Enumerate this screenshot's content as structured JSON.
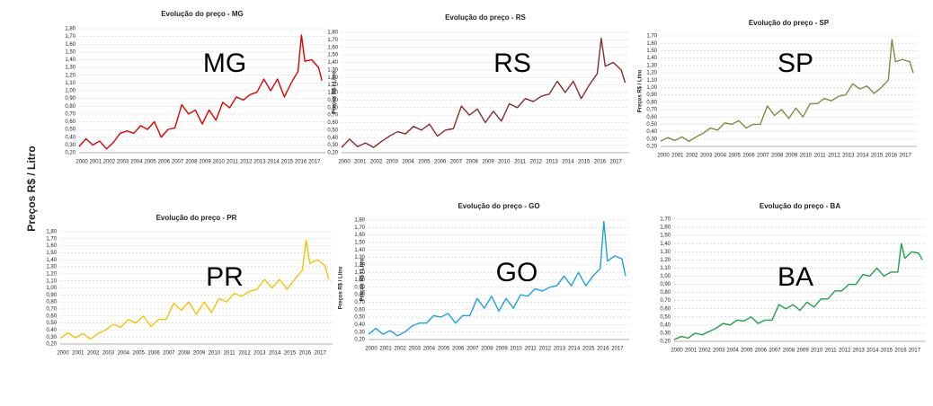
{
  "ylabel": "Preços R$ / Litro",
  "chart_data": [
    {
      "type": "line",
      "title": "Evolução do preço - MG",
      "label": "MG",
      "x": [
        2000,
        2000.5,
        2001,
        2001.5,
        2002,
        2002.5,
        2003,
        2003.5,
        2004,
        2004.5,
        2005,
        2005.5,
        2006,
        2006.5,
        2007,
        2007.5,
        2008,
        2008.5,
        2009,
        2009.5,
        2010,
        2010.5,
        2011,
        2011.5,
        2012,
        2012.5,
        2013,
        2013.5,
        2014,
        2014.5,
        2015,
        2015.5,
        2016,
        2016.25,
        2016.5,
        2017,
        2017.5,
        2017.75
      ],
      "xlim": [
        2000,
        2018
      ],
      "xticks": [
        2000,
        2001,
        2002,
        2003,
        2004,
        2005,
        2006,
        2007,
        2008,
        2009,
        2010,
        2011,
        2012,
        2013,
        2014,
        2015,
        2016,
        2017
      ],
      "ylim": [
        0.2,
        1.8
      ],
      "yticks": [
        {
          "value": 0.2,
          "label": "0,20"
        },
        {
          "value": 0.3,
          "label": "0,30"
        },
        {
          "value": 0.4,
          "label": "0,40"
        },
        {
          "value": 0.5,
          "label": "0,50"
        },
        {
          "value": 0.6,
          "label": "0,60"
        },
        {
          "value": 0.7,
          "label": "0,70"
        },
        {
          "value": 0.8,
          "label": "0,80"
        },
        {
          "value": 0.9,
          "label": "0,90"
        },
        {
          "value": 1.0,
          "label": "1,00"
        },
        {
          "value": 1.1,
          "label": "1,10"
        },
        {
          "value": 1.2,
          "label": "1,20"
        },
        {
          "value": 1.3,
          "label": "1,30"
        },
        {
          "value": 1.4,
          "label": "1,40"
        },
        {
          "value": 1.5,
          "label": "1,50"
        },
        {
          "value": 1.6,
          "label": "1,60"
        },
        {
          "value": 1.7,
          "label": "1,70"
        },
        {
          "value": 1.8,
          "label": "1,80"
        }
      ],
      "grid": true,
      "series": [
        {
          "color": "#e00000",
          "values": [
            0.28,
            0.38,
            0.3,
            0.35,
            0.25,
            0.33,
            0.45,
            0.48,
            0.45,
            0.55,
            0.5,
            0.6,
            0.4,
            0.5,
            0.52,
            0.82,
            0.7,
            0.75,
            0.57,
            0.75,
            0.62,
            0.85,
            0.78,
            0.92,
            0.88,
            0.95,
            0.98,
            1.15,
            1.0,
            1.15,
            0.92,
            1.1,
            1.25,
            1.72,
            1.38,
            1.4,
            1.3,
            1.13
          ]
        }
      ]
    },
    {
      "type": "line",
      "title": "Evolução do preço - RS",
      "label": "RS",
      "ylabel": "Preços R$ / Litro",
      "x": [
        2000,
        2000.5,
        2001,
        2001.5,
        2002,
        2002.5,
        2003,
        2003.5,
        2004,
        2004.5,
        2005,
        2005.5,
        2006,
        2006.5,
        2007,
        2007.5,
        2008,
        2008.5,
        2009,
        2009.5,
        2010,
        2010.5,
        2011,
        2011.5,
        2012,
        2012.5,
        2013,
        2013.5,
        2014,
        2014.5,
        2015,
        2015.5,
        2016,
        2016.25,
        2016.5,
        2017,
        2017.5,
        2017.75
      ],
      "xlim": [
        2000,
        2018
      ],
      "xticks": [
        2000,
        2001,
        2002,
        2003,
        2004,
        2005,
        2006,
        2007,
        2008,
        2009,
        2010,
        2011,
        2012,
        2013,
        2014,
        2015,
        2016,
        2017
      ],
      "ylim": [
        0.2,
        1.8
      ],
      "yticks": [
        {
          "value": 0.2,
          "label": "0,20"
        },
        {
          "value": 0.3,
          "label": "0,30"
        },
        {
          "value": 0.4,
          "label": "0,40"
        },
        {
          "value": 0.5,
          "label": "0,50"
        },
        {
          "value": 0.6,
          "label": "0,60"
        },
        {
          "value": 0.7,
          "label": "0,70"
        },
        {
          "value": 0.8,
          "label": "0,80"
        },
        {
          "value": 0.9,
          "label": "0,90"
        },
        {
          "value": 1.0,
          "label": "1,00"
        },
        {
          "value": 1.1,
          "label": "1,10"
        },
        {
          "value": 1.2,
          "label": "1,20"
        },
        {
          "value": 1.3,
          "label": "1,30"
        },
        {
          "value": 1.4,
          "label": "1,40"
        },
        {
          "value": 1.5,
          "label": "1,50"
        },
        {
          "value": 1.6,
          "label": "1,60"
        },
        {
          "value": 1.7,
          "label": "1,70"
        },
        {
          "value": 1.8,
          "label": "1,80"
        }
      ],
      "grid": true,
      "series": [
        {
          "color": "#8b2a2a",
          "values": [
            0.27,
            0.38,
            0.28,
            0.33,
            0.27,
            0.35,
            0.42,
            0.48,
            0.45,
            0.55,
            0.5,
            0.58,
            0.42,
            0.5,
            0.52,
            0.82,
            0.7,
            0.78,
            0.6,
            0.75,
            0.62,
            0.85,
            0.8,
            0.92,
            0.88,
            0.95,
            0.98,
            1.15,
            1.0,
            1.15,
            0.92,
            1.1,
            1.25,
            1.72,
            1.35,
            1.4,
            1.3,
            1.13
          ]
        }
      ]
    },
    {
      "type": "line",
      "title": "Evolução do preço - SP",
      "label": "SP",
      "ylabel": "Preços R$ / Litro",
      "x": [
        2000,
        2000.5,
        2001,
        2001.5,
        2002,
        2002.5,
        2003,
        2003.5,
        2004,
        2004.5,
        2005,
        2005.5,
        2006,
        2006.5,
        2007,
        2007.5,
        2008,
        2008.5,
        2009,
        2009.5,
        2010,
        2010.5,
        2011,
        2011.5,
        2012,
        2012.5,
        2013,
        2013.5,
        2014,
        2014.5,
        2015,
        2015.5,
        2016,
        2016.25,
        2016.5,
        2017,
        2017.5,
        2017.75
      ],
      "xlim": [
        2000,
        2018
      ],
      "xticks": [
        2000,
        2001,
        2002,
        2003,
        2004,
        2005,
        2006,
        2007,
        2008,
        2009,
        2010,
        2011,
        2012,
        2013,
        2014,
        2015,
        2016,
        2017
      ],
      "ylim": [
        0.2,
        1.7
      ],
      "yticks": [
        {
          "value": 0.2,
          "label": "0,20"
        },
        {
          "value": 0.3,
          "label": "0,30"
        },
        {
          "value": 0.4,
          "label": "0,40"
        },
        {
          "value": 0.5,
          "label": "0,50"
        },
        {
          "value": 0.6,
          "label": "0,60"
        },
        {
          "value": 0.7,
          "label": "0,70"
        },
        {
          "value": 0.8,
          "label": "0,80"
        },
        {
          "value": 0.9,
          "label": "0,90"
        },
        {
          "value": 1.0,
          "label": "1,00"
        },
        {
          "value": 1.1,
          "label": "1,10"
        },
        {
          "value": 1.2,
          "label": "1,20"
        },
        {
          "value": 1.3,
          "label": "1,30"
        },
        {
          "value": 1.4,
          "label": "1,40"
        },
        {
          "value": 1.5,
          "label": "1,50"
        },
        {
          "value": 1.6,
          "label": "1,60"
        },
        {
          "value": 1.7,
          "label": "1,70"
        }
      ],
      "grid": true,
      "series": [
        {
          "color": "#76923c",
          "values": [
            0.27,
            0.32,
            0.28,
            0.33,
            0.27,
            0.33,
            0.38,
            0.45,
            0.42,
            0.52,
            0.5,
            0.55,
            0.45,
            0.5,
            0.5,
            0.75,
            0.62,
            0.7,
            0.58,
            0.72,
            0.6,
            0.78,
            0.78,
            0.85,
            0.82,
            0.88,
            0.9,
            1.05,
            0.98,
            1.02,
            0.92,
            1.0,
            1.1,
            1.65,
            1.35,
            1.38,
            1.35,
            1.2
          ]
        }
      ]
    },
    {
      "type": "line",
      "title": "Evolução do preço - PR",
      "label": "PR",
      "ylabel": "Preços R$ / Litro",
      "x": [
        2000,
        2000.5,
        2001,
        2001.5,
        2002,
        2002.5,
        2003,
        2003.5,
        2004,
        2004.5,
        2005,
        2005.5,
        2006,
        2006.5,
        2007,
        2007.5,
        2008,
        2008.5,
        2009,
        2009.5,
        2010,
        2010.5,
        2011,
        2011.5,
        2012,
        2012.5,
        2013,
        2013.5,
        2014,
        2014.5,
        2015,
        2015.5,
        2016,
        2016.25,
        2016.5,
        2017,
        2017.5,
        2017.75
      ],
      "xlim": [
        2000,
        2018
      ],
      "xticks": [
        2000,
        2001,
        2002,
        2003,
        2004,
        2005,
        2006,
        2007,
        2008,
        2009,
        2010,
        2011,
        2012,
        2013,
        2014,
        2015,
        2016,
        2017
      ],
      "ylim": [
        0.2,
        1.8
      ],
      "yticks": [
        {
          "value": 0.2,
          "label": "0,20"
        },
        {
          "value": 0.3,
          "label": "0,30"
        },
        {
          "value": 0.4,
          "label": "0,40"
        },
        {
          "value": 0.5,
          "label": "0,50"
        },
        {
          "value": 0.6,
          "label": "0,60"
        },
        {
          "value": 0.7,
          "label": "0,70"
        },
        {
          "value": 0.8,
          "label": "0,80"
        },
        {
          "value": 0.9,
          "label": "0,90"
        },
        {
          "value": 1.0,
          "label": "1,00"
        },
        {
          "value": 1.1,
          "label": "1,10"
        },
        {
          "value": 1.2,
          "label": "1,20"
        },
        {
          "value": 1.3,
          "label": "1,30"
        },
        {
          "value": 1.4,
          "label": "1,40"
        },
        {
          "value": 1.5,
          "label": "1,50"
        },
        {
          "value": 1.6,
          "label": "1,60"
        },
        {
          "value": 1.7,
          "label": "1,70"
        },
        {
          "value": 1.8,
          "label": "1,80"
        }
      ],
      "grid": true,
      "series": [
        {
          "color": "#f5c400",
          "values": [
            0.28,
            0.36,
            0.29,
            0.35,
            0.27,
            0.35,
            0.4,
            0.48,
            0.44,
            0.55,
            0.5,
            0.6,
            0.45,
            0.55,
            0.55,
            0.78,
            0.68,
            0.8,
            0.62,
            0.8,
            0.65,
            0.85,
            0.8,
            0.92,
            0.88,
            0.95,
            0.98,
            1.12,
            1.0,
            1.12,
            0.98,
            1.12,
            1.25,
            1.68,
            1.35,
            1.4,
            1.32,
            1.12
          ]
        }
      ]
    },
    {
      "type": "line",
      "title": "Evolução do preço - GO",
      "label": "GO",
      "ylabel": "Preços R$ / Litro",
      "x": [
        2000,
        2000.5,
        2001,
        2001.5,
        2002,
        2002.5,
        2003,
        2003.5,
        2004,
        2004.5,
        2005,
        2005.5,
        2006,
        2006.5,
        2007,
        2007.5,
        2008,
        2008.5,
        2009,
        2009.5,
        2010,
        2010.5,
        2011,
        2011.5,
        2012,
        2012.5,
        2013,
        2013.5,
        2014,
        2014.5,
        2015,
        2015.5,
        2016,
        2016.25,
        2016.5,
        2017,
        2017.5,
        2017.75
      ],
      "xlim": [
        2000,
        2018
      ],
      "xticks": [
        2000,
        2001,
        2002,
        2003,
        2004,
        2005,
        2006,
        2007,
        2008,
        2009,
        2010,
        2011,
        2012,
        2013,
        2014,
        2015,
        2016,
        2017
      ],
      "ylim": [
        0.2,
        1.8
      ],
      "yticks": [
        {
          "value": 0.2,
          "label": "0,20"
        },
        {
          "value": 0.3,
          "label": "0,30"
        },
        {
          "value": 0.4,
          "label": "0,40"
        },
        {
          "value": 0.5,
          "label": "0,50"
        },
        {
          "value": 0.6,
          "label": "0,60"
        },
        {
          "value": 0.7,
          "label": "0,70"
        },
        {
          "value": 0.8,
          "label": "0,80"
        },
        {
          "value": 0.9,
          "label": "0,90"
        },
        {
          "value": 1.0,
          "label": "1,00"
        },
        {
          "value": 1.1,
          "label": "1,10"
        },
        {
          "value": 1.2,
          "label": "1,20"
        },
        {
          "value": 1.3,
          "label": "1,30"
        },
        {
          "value": 1.4,
          "label": "1,40"
        },
        {
          "value": 1.5,
          "label": "1,50"
        },
        {
          "value": 1.6,
          "label": "1,60"
        },
        {
          "value": 1.7,
          "label": "1,70"
        },
        {
          "value": 1.8,
          "label": "1,80"
        }
      ],
      "grid": true,
      "series": [
        {
          "color": "#1ca3e0",
          "values": [
            0.27,
            0.35,
            0.27,
            0.32,
            0.25,
            0.3,
            0.38,
            0.42,
            0.42,
            0.52,
            0.5,
            0.55,
            0.42,
            0.52,
            0.52,
            0.75,
            0.62,
            0.78,
            0.58,
            0.75,
            0.62,
            0.8,
            0.78,
            0.88,
            0.85,
            0.9,
            0.92,
            1.05,
            0.92,
            1.1,
            0.92,
            1.05,
            1.15,
            1.78,
            1.25,
            1.32,
            1.28,
            1.05
          ]
        }
      ]
    },
    {
      "type": "line",
      "title": "Evolução do preço - BA",
      "label": "BA",
      "x": [
        2000,
        2000.5,
        2001,
        2001.5,
        2002,
        2002.5,
        2003,
        2003.5,
        2004,
        2004.5,
        2005,
        2005.5,
        2006,
        2006.5,
        2007,
        2007.5,
        2008,
        2008.5,
        2009,
        2009.5,
        2010,
        2010.5,
        2011,
        2011.5,
        2012,
        2012.5,
        2013,
        2013.5,
        2014,
        2014.5,
        2015,
        2015.5,
        2016,
        2016.25,
        2016.5,
        2017,
        2017.5,
        2017.75
      ],
      "xlim": [
        2000,
        2018
      ],
      "xticks": [
        2000,
        2001,
        2002,
        2003,
        2004,
        2005,
        2006,
        2007,
        2008,
        2009,
        2010,
        2011,
        2012,
        2013,
        2014,
        2015,
        2016,
        2017
      ],
      "ylim": [
        0.2,
        1.7
      ],
      "yticks": [
        {
          "value": 0.2,
          "label": "0,20"
        },
        {
          "value": 0.3,
          "label": "0,30"
        },
        {
          "value": 0.4,
          "label": "0,40"
        },
        {
          "value": 0.5,
          "label": "0,50"
        },
        {
          "value": 0.6,
          "label": "0,60"
        },
        {
          "value": 0.7,
          "label": "0,70"
        },
        {
          "value": 0.8,
          "label": "0,80"
        },
        {
          "value": 0.9,
          "label": "0,90"
        },
        {
          "value": 1.0,
          "label": "1,00"
        },
        {
          "value": 1.1,
          "label": "1,10"
        },
        {
          "value": 1.2,
          "label": "1,20"
        },
        {
          "value": 1.3,
          "label": "1,30"
        },
        {
          "value": 1.4,
          "label": "1,40"
        },
        {
          "value": 1.5,
          "label": "1,50"
        },
        {
          "value": 1.6,
          "label": "1,60"
        },
        {
          "value": 1.7,
          "label": "1,70"
        }
      ],
      "grid": true,
      "series": [
        {
          "color": "#1aa34a",
          "values": [
            0.22,
            0.26,
            0.24,
            0.3,
            0.28,
            0.32,
            0.36,
            0.42,
            0.4,
            0.46,
            0.45,
            0.5,
            0.42,
            0.46,
            0.46,
            0.65,
            0.6,
            0.65,
            0.58,
            0.68,
            0.62,
            0.72,
            0.72,
            0.82,
            0.82,
            0.9,
            0.9,
            1.02,
            1.0,
            1.1,
            1.0,
            1.05,
            1.05,
            1.4,
            1.22,
            1.3,
            1.28,
            1.2
          ]
        }
      ]
    }
  ]
}
